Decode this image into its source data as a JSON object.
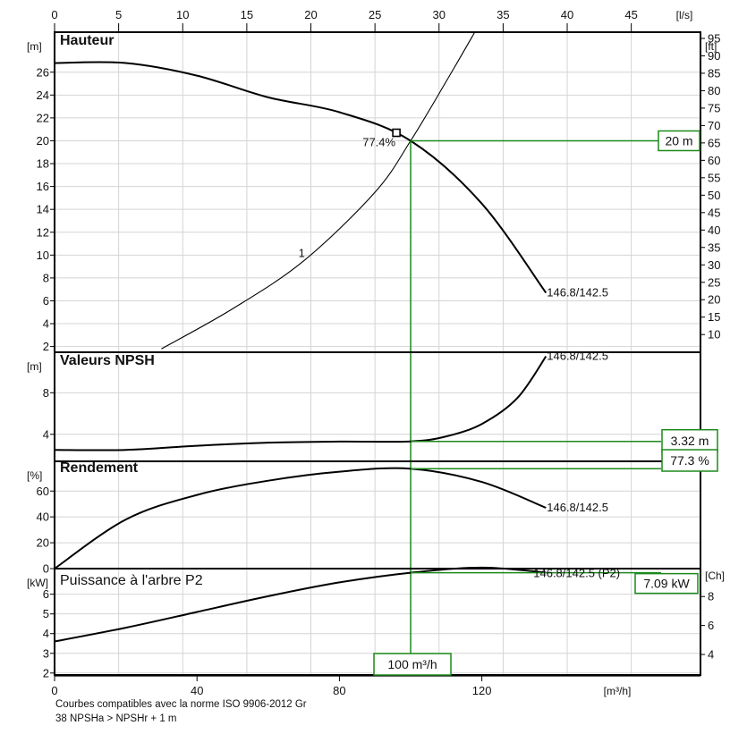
{
  "chart_data": {
    "type": "line",
    "axes": {
      "flow_ls": {
        "unit": "[l/s]",
        "ticks": [
          "0",
          "5",
          "10",
          "15",
          "20",
          "25",
          "30",
          "35",
          "40",
          "45"
        ],
        "range": [
          0,
          50.4
        ]
      },
      "flow_m3h": {
        "unit": "[m³/h]",
        "ticks": [
          "0",
          "40",
          "80",
          "120"
        ],
        "range": [
          0,
          181.4
        ]
      }
    },
    "operating_point": {
      "flow": 100,
      "flow_label": "100 m³/h",
      "efficiency_marker_label": "77.4%"
    },
    "panels": [
      {
        "title": "Hauteur",
        "y_unit": "[m]",
        "y_ticks": [
          "2",
          "4",
          "6",
          "8",
          "10",
          "12",
          "14",
          "16",
          "18",
          "20",
          "22",
          "24",
          "26"
        ],
        "y_range": [
          1.5,
          29.5
        ],
        "y2_unit": "[ft]",
        "y2_ticks": [
          "10",
          "15",
          "20",
          "25",
          "30",
          "35",
          "40",
          "45",
          "50",
          "55",
          "60",
          "65",
          "70",
          "75",
          "80",
          "85",
          "90",
          "95"
        ],
        "series": [
          {
            "label": "146.8/142.5",
            "x": [
              0,
              20,
              40,
              60,
              80,
              100,
              120,
              138
            ],
            "y": [
              26.8,
              26.8,
              25.7,
              23.8,
              22.5,
              20,
              14.5,
              6.7
            ]
          },
          {
            "label": "1",
            "x": [
              30,
              50,
              70,
              90,
              100,
              110,
              118
            ],
            "y": [
              1.8,
              5.3,
              9.5,
              15.5,
              20,
              25.2,
              29.5
            ]
          }
        ],
        "result_box": "20 m"
      },
      {
        "title": "Valeurs NPSH",
        "y_unit": "[m]",
        "y_ticks": [
          "4",
          "8"
        ],
        "y_range": [
          1.4,
          11.9
        ],
        "series": [
          {
            "label": "146.8/142.5",
            "x": [
              0,
              20,
              40,
              60,
              80,
              100,
              110,
              120,
              130,
              138
            ],
            "y": [
              2.5,
              2.5,
              2.9,
              3.2,
              3.3,
              3.32,
              3.8,
              5.0,
              7.5,
              11.5
            ]
          }
        ],
        "result_box": "3.32 m"
      },
      {
        "title": "Rendement",
        "y_unit": "[%]",
        "y_ticks": [
          "0",
          "20",
          "40",
          "60"
        ],
        "y_range": [
          0,
          83
        ],
        "series": [
          {
            "label": "146.8/142.5",
            "x": [
              0,
              20,
              40,
              60,
              80,
              100,
              120,
              138
            ],
            "y": [
              0,
              38,
              57,
              68,
              75,
              77.3,
              67,
              47
            ]
          }
        ],
        "result_box": "77.3 %"
      },
      {
        "title": "Puissance à l'arbre P2",
        "y_unit": "[kW]",
        "y_ticks": [
          "2",
          "3",
          "4",
          "5",
          "6"
        ],
        "y_range": [
          1.9,
          7.3
        ],
        "y2_unit": "[Ch]",
        "y2_ticks": [
          "4",
          "6",
          "8"
        ],
        "series": [
          {
            "label": "146.8/142.5 (P2)",
            "x": [
              0,
              20,
              40,
              60,
              80,
              100,
              120,
              138
            ],
            "y": [
              3.6,
              4.3,
              5.1,
              5.9,
              6.6,
              7.09,
              7.35,
              7.1
            ]
          }
        ],
        "result_box": "7.09 kW"
      }
    ],
    "footer": [
      "Courbes compatibles avec la norme ISO 9906-2012 Gr",
      "38 NPSHa > NPSHr + 1 m"
    ]
  }
}
